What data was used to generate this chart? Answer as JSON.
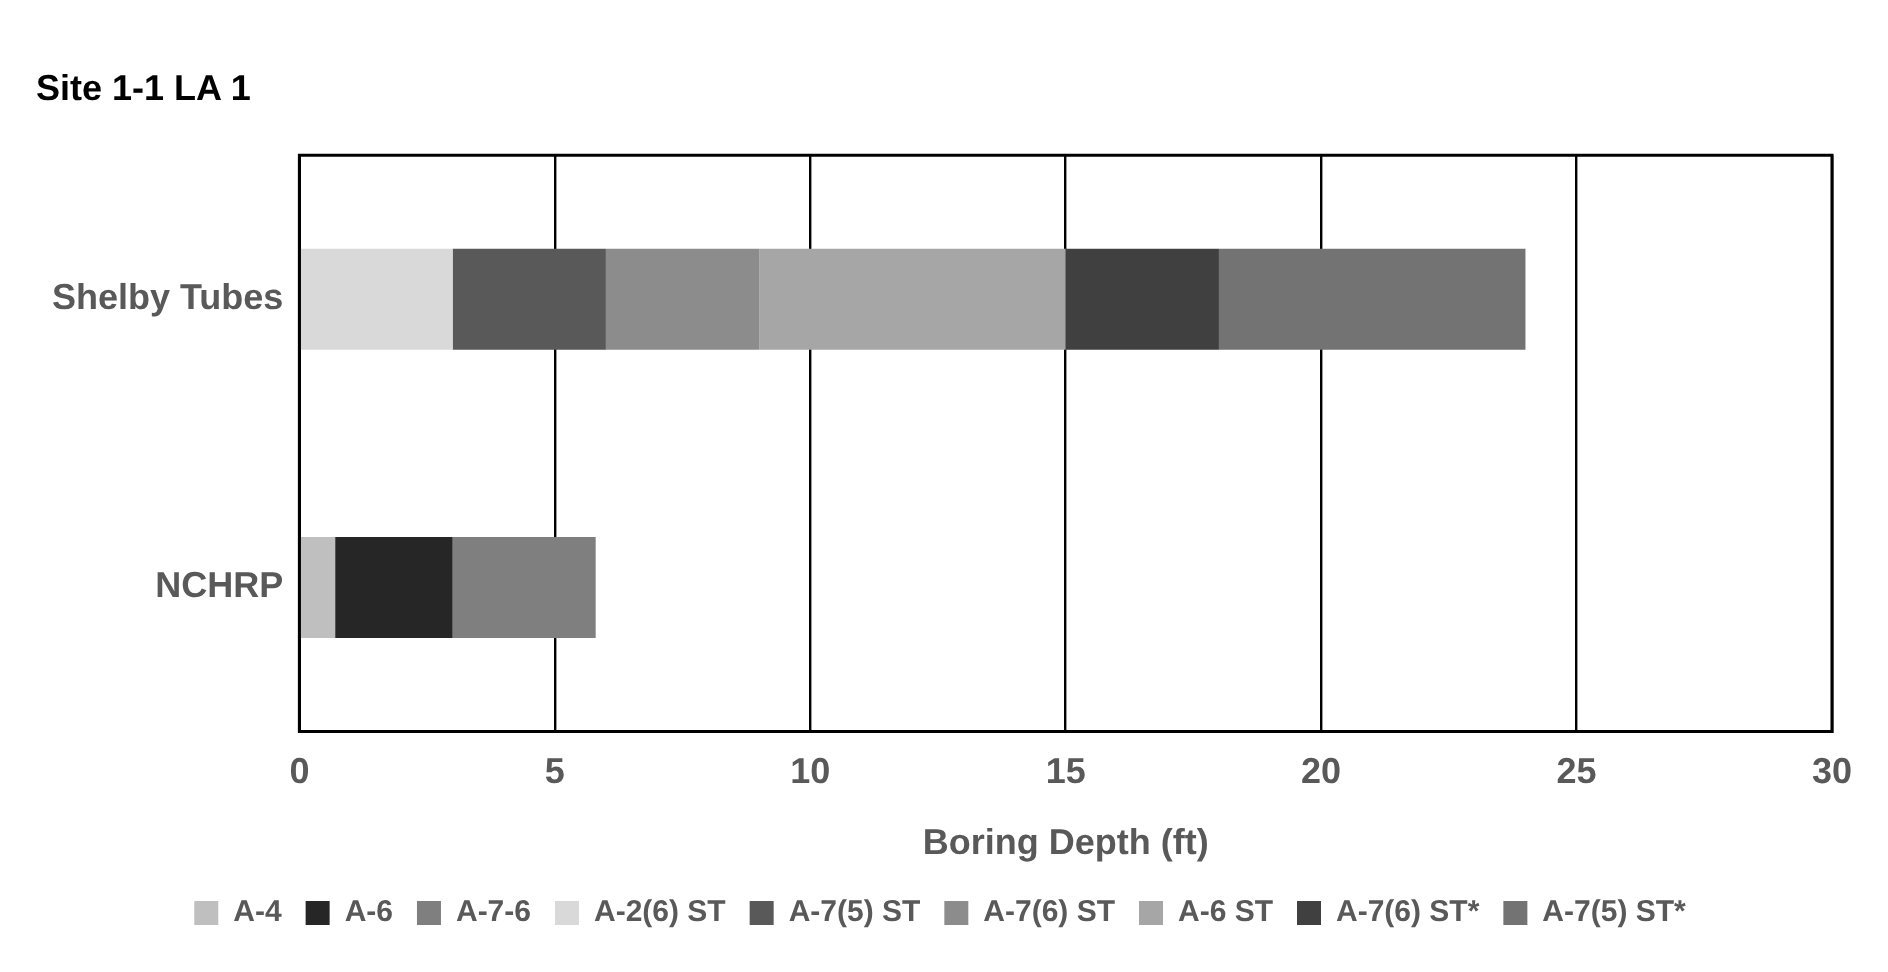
{
  "chart_data": {
    "type": "bar",
    "title": "Site 1-1 LA 1",
    "xlabel": "Boring Depth (ft)",
    "orientation": "horizontal",
    "stacked": true,
    "categories": [
      "Shelby Tubes",
      "NCHRP"
    ],
    "series": [
      {
        "name": "A-4",
        "color": "#bfbfbf",
        "values": [
          null,
          0.7
        ]
      },
      {
        "name": "A-6",
        "color": "#262626",
        "values": [
          null,
          2.3
        ]
      },
      {
        "name": "A-7-6",
        "color": "#7f7f7f",
        "values": [
          null,
          2.8
        ]
      },
      {
        "name": "A-2(6) ST",
        "color": "#d9d9d9",
        "values": [
          3,
          null
        ]
      },
      {
        "name": "A-7(5) ST",
        "color": "#595959",
        "values": [
          3,
          null
        ]
      },
      {
        "name": "A-7(6) ST",
        "color": "#8c8c8c",
        "values": [
          3,
          null
        ]
      },
      {
        "name": "A-6 ST",
        "color": "#a6a6a6",
        "values": [
          6,
          null
        ]
      },
      {
        "name": "A-7(6) ST*",
        "color": "#404040",
        "values": [
          3,
          null
        ]
      },
      {
        "name": "A-7(5) ST*",
        "color": "#737373",
        "values": [
          6,
          null
        ]
      }
    ],
    "xlim": [
      0,
      30
    ],
    "xticks": [
      0,
      5,
      10,
      15,
      20,
      25,
      30
    ],
    "grid": "x",
    "legend": "bottom"
  }
}
